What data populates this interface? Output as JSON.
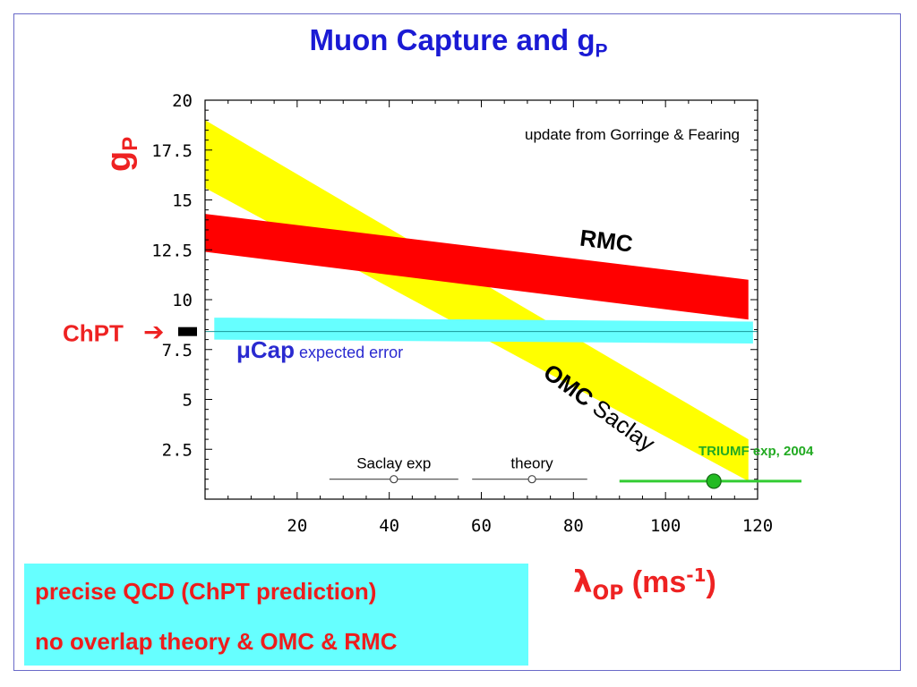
{
  "slide": {
    "title": "Muon Capture and g",
    "title_sub": "P",
    "colors": {
      "title": "#1a1ad4",
      "accent_red": "#ee2222",
      "cyan": "#66ffff"
    }
  },
  "chart_data": {
    "type": "area",
    "xlim": [
      0,
      120
    ],
    "ylim": [
      0,
      20
    ],
    "x_ticks": [
      20,
      40,
      60,
      80,
      100,
      120
    ],
    "y_ticks": [
      2.5,
      5,
      7.5,
      10,
      12.5,
      15,
      17.5,
      20
    ],
    "x_tick_labels": [
      "20",
      "40",
      "60",
      "80",
      "100",
      "120"
    ],
    "y_tick_labels": [
      "2.5",
      "5",
      "7.5",
      "10",
      "12.5",
      "15",
      "17.5",
      "20"
    ],
    "xlabel": {
      "symbol": "λ",
      "sub": "OP",
      "unit": " (ms",
      "unit_sup": "-1",
      "unit_close": ")"
    },
    "ylabel": {
      "main": "g",
      "sub": "P"
    },
    "annotation": "update from Gorringe & Fearing",
    "bands": [
      {
        "name": "OMC",
        "sub_label": "Saclay",
        "color": "#ffff00",
        "upper": [
          [
            0,
            19.0
          ],
          [
            118,
            3.0
          ]
        ],
        "lower": [
          [
            0,
            15.6
          ],
          [
            118,
            0.9
          ]
        ]
      },
      {
        "name": "RMC",
        "color": "#ff0000",
        "upper": [
          [
            0,
            14.3
          ],
          [
            118,
            11.0
          ]
        ],
        "lower": [
          [
            0,
            12.4
          ],
          [
            118,
            9.0
          ]
        ]
      },
      {
        "name": "μCap",
        "sub_label": "expected error",
        "color": "#66ffff",
        "upper": [
          [
            2,
            9.1
          ],
          [
            119,
            8.9
          ]
        ],
        "lower": [
          [
            2,
            8.0
          ],
          [
            119,
            7.8
          ]
        ]
      }
    ],
    "chpt_line": {
      "label": "ChPT",
      "arrow": "➔",
      "value": 8.4,
      "color": "#ee2222"
    },
    "points": [
      {
        "label": "Saclay exp",
        "x": 41,
        "y": 1.0,
        "xerr": [
          27,
          55
        ],
        "color": "#444444"
      },
      {
        "label": "theory",
        "x": 71,
        "y": 1.0,
        "xerr": [
          58,
          83
        ],
        "color": "#444444"
      },
      {
        "label": "TRIUMF exp, 2004",
        "x": 110.5,
        "y": 0.9,
        "xerr": [
          90,
          130
        ],
        "color": "#33cc33",
        "label_color": "#22aa22"
      }
    ]
  },
  "bottom_box": {
    "line1": "precise QCD (ChPT prediction)",
    "line2": "no overlap theory & OMC & RMC"
  }
}
